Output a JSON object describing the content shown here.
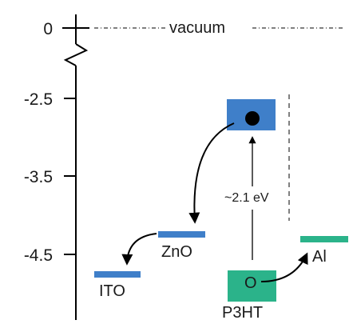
{
  "axis": {
    "ticks": [
      "0",
      "-2.5",
      "-3.5",
      "-4.5"
    ]
  },
  "vacuum": {
    "label": "vacuum"
  },
  "levels": {
    "ito": {
      "label": "ITO",
      "color": "#3f7fc9"
    },
    "zno": {
      "label": "ZnO",
      "color": "#3f7fc9"
    },
    "p3ht_lumo": {
      "color": "#3f7fc9"
    },
    "p3ht_homo": {
      "label": "O",
      "color": "#2bb38a"
    },
    "p3ht": {
      "label": "P3HT"
    },
    "al": {
      "label": "Al",
      "color": "#2bb38a"
    }
  },
  "bandgap": {
    "label": "~2.1 eV"
  },
  "icons": [
    "electron-dot",
    "hole-circle",
    "transfer-arrow",
    "axis-break"
  ]
}
